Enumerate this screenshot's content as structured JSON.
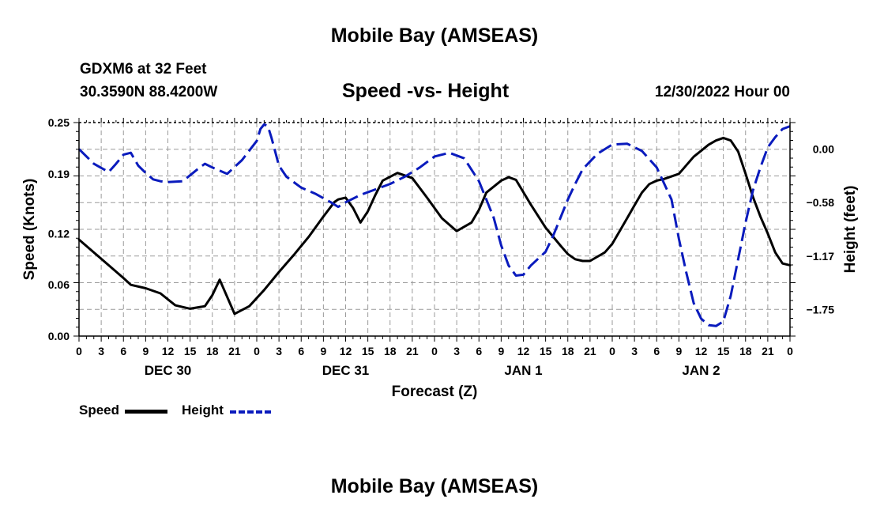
{
  "page": {
    "title": "Mobile Bay (AMSEAS)",
    "station": "GDXM6 at 32 Feet",
    "position": "30.3590N  88.4200W",
    "subtitle": "Speed -vs- Height",
    "run_time": "12/30/2022 Hour 00",
    "footer_title": "Mobile Bay (AMSEAS)"
  },
  "chart_data": {
    "type": "line",
    "title": "Speed -vs- Height",
    "xlabel": "Forecast (Z)",
    "ylabel_left": "Speed (Knots)",
    "ylabel_right": "Height (feet)",
    "x_unit": "hours since 12/30/2022 00Z",
    "xlim": [
      0,
      96
    ],
    "x_ticks": [
      0,
      3,
      6,
      9,
      12,
      15,
      18,
      21,
      24,
      27,
      30,
      33,
      36,
      39,
      42,
      45,
      48,
      51,
      54,
      57,
      60,
      63,
      66,
      69,
      72,
      75,
      78,
      81,
      84,
      87,
      90,
      93,
      96
    ],
    "x_tick_labels": [
      "0",
      "3",
      "6",
      "9",
      "12",
      "15",
      "18",
      "21",
      "0",
      "3",
      "6",
      "9",
      "12",
      "15",
      "18",
      "21",
      "0",
      "3",
      "6",
      "9",
      "12",
      "15",
      "18",
      "21",
      "0",
      "3",
      "6",
      "9",
      "12",
      "15",
      "18",
      "21",
      "0"
    ],
    "day_labels": [
      {
        "x": 12,
        "label": "DEC 30"
      },
      {
        "x": 36,
        "label": "DEC 31"
      },
      {
        "x": 60,
        "label": "JAN 1"
      },
      {
        "x": 84,
        "label": "JAN 2"
      }
    ],
    "y_left": {
      "lim": [
        0,
        0.25
      ],
      "ticks": [
        0.0,
        0.06,
        0.12,
        0.19,
        0.25
      ],
      "tick_labels": [
        "0.00",
        "0.06",
        "0.12",
        "0.19",
        "0.25"
      ]
    },
    "y_right": {
      "lim": [
        -2.04,
        0.29
      ],
      "ticks": [
        0.0,
        -0.58,
        -1.17,
        -1.75
      ],
      "tick_labels": [
        "0.00",
        "−0.58",
        "−1.17",
        "−1.75"
      ]
    },
    "grid": true,
    "legend": "bottom-left",
    "series": [
      {
        "name": "Speed",
        "axis": "left",
        "color": "#000000",
        "dash": "solid",
        "x": [
          0,
          2,
          4,
          6,
          7,
          9,
          11,
          13,
          15,
          17,
          18,
          19,
          21,
          23,
          25,
          27,
          29,
          31,
          33,
          34.5,
          35,
          36,
          37,
          38,
          39,
          40,
          41,
          43,
          45,
          47,
          49,
          51,
          53,
          54,
          55,
          57,
          58,
          59,
          61,
          63,
          65,
          66,
          67,
          68,
          69,
          71,
          72,
          73,
          74,
          75,
          76,
          77,
          78,
          79,
          81,
          83,
          85,
          86,
          87,
          88,
          89,
          90,
          91,
          92,
          93,
          94,
          95,
          96
        ],
        "y": [
          0.113,
          0.098,
          0.083,
          0.068,
          0.06,
          0.056,
          0.05,
          0.036,
          0.032,
          0.035,
          0.048,
          0.066,
          0.026,
          0.035,
          0.054,
          0.075,
          0.095,
          0.116,
          0.14,
          0.157,
          0.16,
          0.162,
          0.15,
          0.133,
          0.146,
          0.165,
          0.182,
          0.191,
          0.185,
          0.162,
          0.138,
          0.123,
          0.133,
          0.148,
          0.168,
          0.182,
          0.186,
          0.183,
          0.154,
          0.127,
          0.106,
          0.096,
          0.09,
          0.088,
          0.088,
          0.098,
          0.108,
          0.123,
          0.138,
          0.153,
          0.168,
          0.178,
          0.182,
          0.184,
          0.19,
          0.21,
          0.224,
          0.229,
          0.232,
          0.229,
          0.216,
          0.19,
          0.163,
          0.14,
          0.12,
          0.098,
          0.085,
          0.083
        ],
        "note": ""
      },
      {
        "name": "Height",
        "axis": "right",
        "color": "#0a1bbd",
        "dash": "dashed",
        "x": [
          0,
          2,
          4,
          5,
          6,
          7,
          8,
          9,
          10,
          11,
          12,
          14,
          16,
          17,
          18,
          20,
          22,
          24,
          24.5,
          25,
          25.5,
          26,
          27,
          28,
          30,
          32,
          34,
          35,
          36,
          38,
          40,
          42,
          44,
          46,
          48,
          50,
          52,
          54,
          56,
          57,
          58,
          59,
          60,
          61,
          63,
          64,
          65,
          66,
          67,
          68,
          70,
          72,
          74,
          76,
          78,
          80,
          81,
          82,
          83,
          84,
          85,
          86,
          87,
          88,
          89,
          90,
          91,
          92,
          93,
          94,
          95,
          96
        ],
        "y": [
          0.0,
          -0.16,
          -0.25,
          -0.16,
          -0.06,
          -0.04,
          -0.18,
          -0.26,
          -0.33,
          -0.35,
          -0.36,
          -0.35,
          -0.22,
          -0.16,
          -0.2,
          -0.27,
          -0.12,
          0.09,
          0.22,
          0.27,
          0.25,
          0.12,
          -0.18,
          -0.3,
          -0.42,
          -0.49,
          -0.58,
          -0.63,
          -0.58,
          -0.5,
          -0.44,
          -0.38,
          -0.3,
          -0.2,
          -0.08,
          -0.04,
          -0.1,
          -0.35,
          -0.75,
          -1.05,
          -1.27,
          -1.38,
          -1.37,
          -1.27,
          -1.12,
          -0.95,
          -0.75,
          -0.55,
          -0.38,
          -0.22,
          -0.05,
          0.05,
          0.06,
          -0.02,
          -0.2,
          -0.55,
          -0.98,
          -1.35,
          -1.68,
          -1.85,
          -1.92,
          -1.93,
          -1.88,
          -1.6,
          -1.2,
          -0.8,
          -0.45,
          -0.2,
          0.02,
          0.13,
          0.22,
          0.25
        ]
      }
    ]
  },
  "legend": {
    "speed_label": "Speed",
    "height_label": "Height"
  }
}
